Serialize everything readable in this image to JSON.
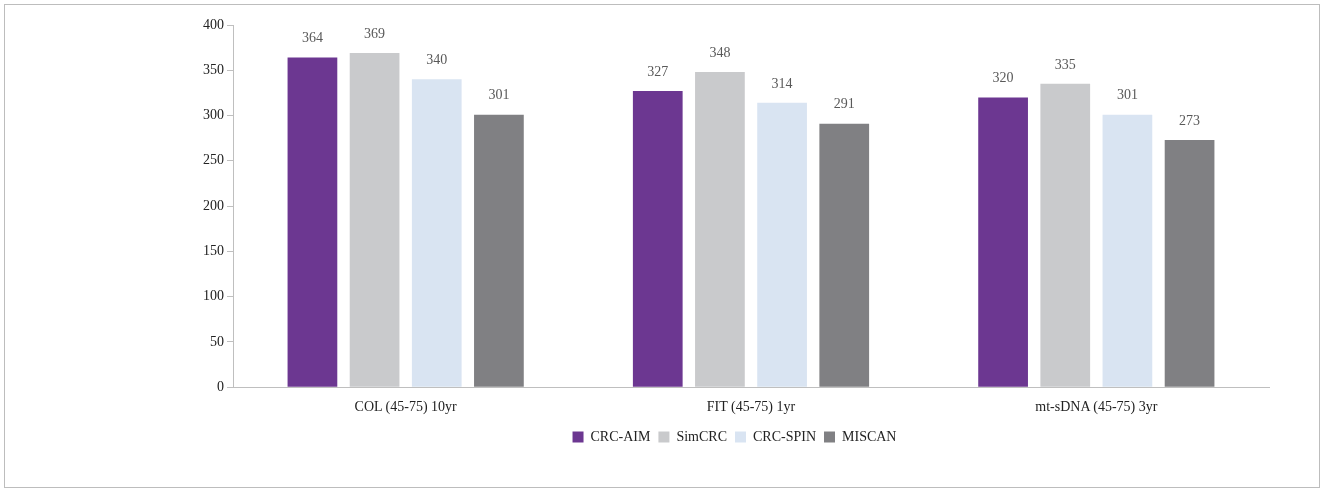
{
  "chart_data": {
    "type": "bar",
    "categories": [
      "COL (45-75) 10yr",
      "FIT (45-75) 1yr",
      "mt-sDNA (45-75) 3yr"
    ],
    "series": [
      {
        "name": "CRC-AIM",
        "color": "#6c3791",
        "values": [
          364,
          327,
          320
        ]
      },
      {
        "name": "SimCRC",
        "color": "#c9cacc",
        "values": [
          369,
          348,
          335
        ]
      },
      {
        "name": "CRC-SPIN",
        "color": "#d9e4f2",
        "values": [
          340,
          314,
          301
        ]
      },
      {
        "name": "MISCAN",
        "color": "#808083",
        "values": [
          301,
          291,
          273
        ]
      }
    ],
    "ylim": [
      0,
      400
    ],
    "yticks": [
      0,
      50,
      100,
      150,
      200,
      250,
      300,
      350,
      400
    ],
    "grid": false,
    "legend": "bottom",
    "data_labels": true
  }
}
